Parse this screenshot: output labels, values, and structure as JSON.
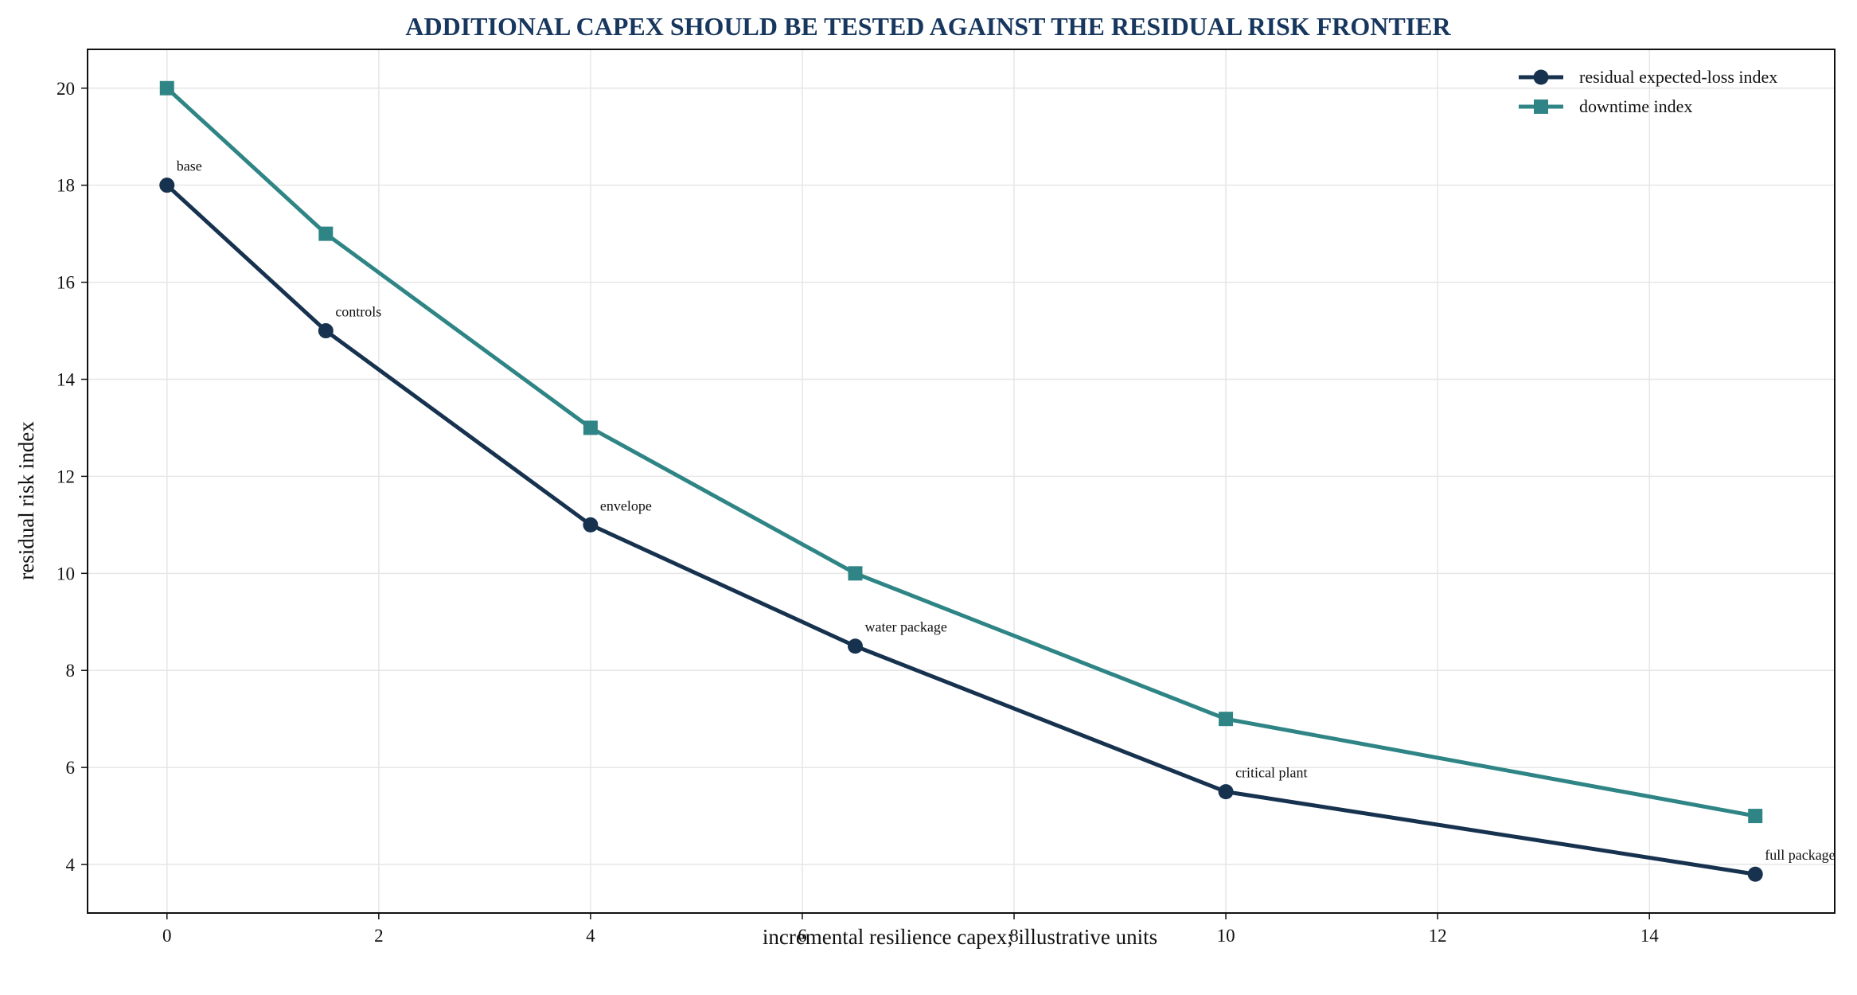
{
  "colors": {
    "title": "#17375e",
    "series_1": "#17324f",
    "series_2": "#2f8585",
    "grid": "#e6e6e6",
    "axis": "#111111"
  },
  "chart_data": {
    "type": "line",
    "title": "ADDITIONAL CAPEX SHOULD BE TESTED AGAINST THE RESIDUAL RISK FRONTIER",
    "xlabel": "incremental resilience capex; illustrative units",
    "ylabel": "residual risk index",
    "xlim": [
      -0.75,
      15.75
    ],
    "ylim": [
      3,
      20.8
    ],
    "x_ticks": [
      0,
      2,
      4,
      6,
      8,
      10,
      12,
      14
    ],
    "y_ticks": [
      4,
      6,
      8,
      10,
      12,
      14,
      16,
      18,
      20
    ],
    "grid": true,
    "legend_position": "top-right",
    "x": [
      0,
      1.5,
      4,
      6.5,
      10,
      15
    ],
    "series": [
      {
        "name": "residual expected-loss index",
        "values": [
          18,
          15,
          11,
          8.5,
          5.5,
          3.8
        ],
        "marker": "circle",
        "color": "#17324f"
      },
      {
        "name": "downtime index",
        "values": [
          20,
          17,
          13,
          10,
          7,
          5
        ],
        "marker": "square",
        "color": "#2f8585"
      }
    ],
    "annotations": [
      {
        "text": "base",
        "x": 0,
        "y": 18
      },
      {
        "text": "controls",
        "x": 1.5,
        "y": 15
      },
      {
        "text": "envelope",
        "x": 4,
        "y": 11
      },
      {
        "text": "water package",
        "x": 6.5,
        "y": 8.5
      },
      {
        "text": "critical plant",
        "x": 10,
        "y": 5.5
      },
      {
        "text": "full package",
        "x": 15,
        "y": 3.8
      }
    ]
  }
}
